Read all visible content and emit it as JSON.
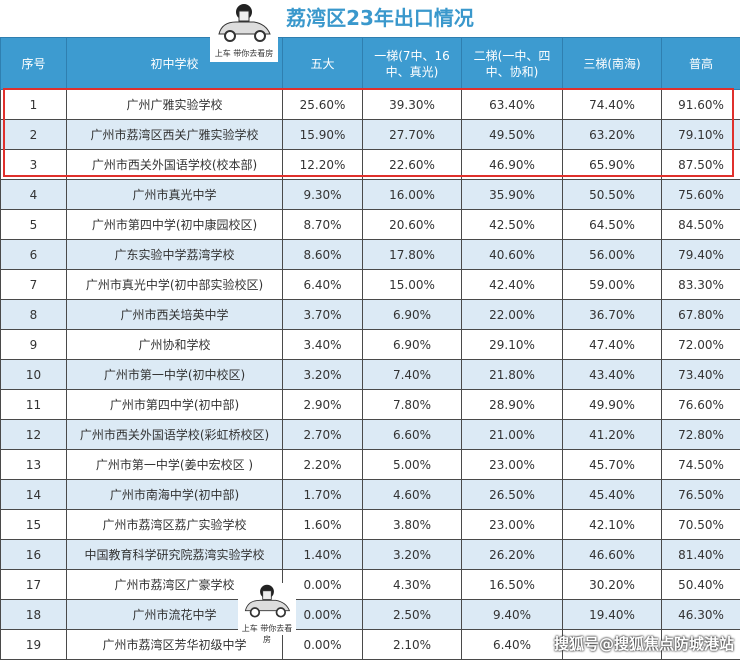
{
  "title": "荔湾区23年出口情况",
  "sticker_caption": "上车 带你去看房",
  "watermark": "搜狐号@搜狐焦点防城港站",
  "columns": [
    "序号",
    "初中学校",
    "五大",
    "一梯(7中、16中、真光)",
    "二梯(一中、四中、协和)",
    "三梯(南海)",
    "普高"
  ],
  "highlight_color": "#e0302c",
  "header_color": "#3d9bd0",
  "rows": [
    [
      "1",
      "广州广雅实验学校",
      "25.60%",
      "39.30%",
      "63.40%",
      "74.40%",
      "91.60%"
    ],
    [
      "2",
      "广州市荔湾区西关广雅实验学校",
      "15.90%",
      "27.70%",
      "49.50%",
      "63.20%",
      "79.10%"
    ],
    [
      "3",
      "广州市西关外国语学校(校本部)",
      "12.20%",
      "22.60%",
      "46.90%",
      "65.90%",
      "87.50%"
    ],
    [
      "4",
      "广州市真光中学",
      "9.30%",
      "16.00%",
      "35.90%",
      "50.50%",
      "75.60%"
    ],
    [
      "5",
      "广州市第四中学(初中康园校区)",
      "8.70%",
      "20.60%",
      "42.50%",
      "64.50%",
      "84.50%"
    ],
    [
      "6",
      "广东实验中学荔湾学校",
      "8.60%",
      "17.80%",
      "40.60%",
      "56.00%",
      "79.40%"
    ],
    [
      "7",
      "广州市真光中学(初中部实验校区)",
      "6.40%",
      "15.00%",
      "42.40%",
      "59.00%",
      "83.30%"
    ],
    [
      "8",
      "广州市西关培英中学",
      "3.70%",
      "6.90%",
      "22.00%",
      "36.70%",
      "67.80%"
    ],
    [
      "9",
      "广州协和学校",
      "3.40%",
      "6.90%",
      "29.10%",
      "47.40%",
      "72.00%"
    ],
    [
      "10",
      "广州市第一中学(初中校区)",
      "3.20%",
      "7.40%",
      "21.80%",
      "43.40%",
      "73.40%"
    ],
    [
      "11",
      "广州市第四中学(初中部)",
      "2.90%",
      "7.80%",
      "28.90%",
      "49.90%",
      "76.60%"
    ],
    [
      "12",
      "广州市西关外国语学校(彩虹桥校区)",
      "2.70%",
      "6.60%",
      "21.00%",
      "41.20%",
      "72.80%"
    ],
    [
      "13",
      "广州市第一中学(姜中宏校区 )",
      "2.20%",
      "5.00%",
      "23.00%",
      "45.70%",
      "74.50%"
    ],
    [
      "14",
      "广州市南海中学(初中部)",
      "1.70%",
      "4.60%",
      "26.50%",
      "45.40%",
      "76.50%"
    ],
    [
      "15",
      "广州市荔湾区荔广实验学校",
      "1.60%",
      "3.80%",
      "23.00%",
      "42.10%",
      "70.50%"
    ],
    [
      "16",
      "中国教育科学研究院荔湾实验学校",
      "1.40%",
      "3.20%",
      "26.20%",
      "46.60%",
      "81.40%"
    ],
    [
      "17",
      "广州市荔湾区广豪学校",
      "0.00%",
      "4.30%",
      "16.50%",
      "30.20%",
      "50.40%"
    ],
    [
      "18",
      "广州市流花中学",
      "0.00%",
      "2.50%",
      "9.40%",
      "19.40%",
      "46.30%"
    ],
    [
      "19",
      "广州市荔湾区芳华初级中学",
      "0.00%",
      "2.10%",
      "6.40%",
      "",
      ""
    ]
  ]
}
